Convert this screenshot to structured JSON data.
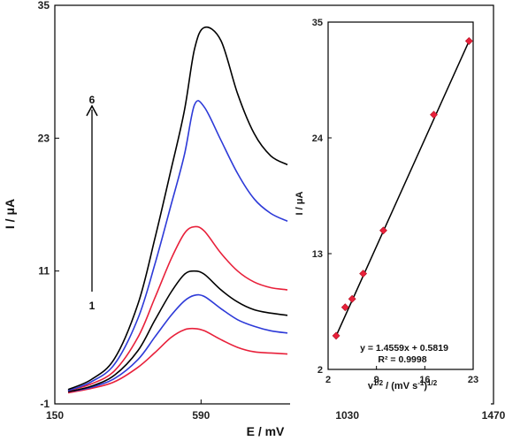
{
  "chart_data": [
    {
      "type": "line",
      "xlabel": "E / mV",
      "ylabel": "I / μA",
      "xlim": [
        150,
        1470
      ],
      "ylim": [
        -1,
        35
      ],
      "xticks": [
        150,
        590,
        1030,
        1470
      ],
      "yticks": [
        -1,
        11,
        23,
        35
      ],
      "grid": false,
      "annotations": {
        "arrow_start": "1",
        "arrow_end": "6"
      },
      "series": [
        {
          "color": "#e8203a",
          "x": [
            190,
            260,
            330,
            400,
            450,
            500,
            540,
            570,
            600,
            650,
            700,
            750,
            800,
            850
          ],
          "y": [
            0.0,
            0.4,
            1.0,
            2.3,
            3.6,
            5.0,
            5.7,
            5.8,
            5.6,
            4.8,
            4.1,
            3.7,
            3.6,
            3.5
          ]
        },
        {
          "color": "#2d3ad8",
          "x": [
            190,
            260,
            330,
            400,
            450,
            500,
            540,
            570,
            600,
            650,
            700,
            750,
            800,
            850
          ],
          "y": [
            0.1,
            0.5,
            1.3,
            3.0,
            5.0,
            7.0,
            8.3,
            8.8,
            8.7,
            7.6,
            6.6,
            6.0,
            5.6,
            5.4
          ]
        },
        {
          "color": "#000000",
          "x": [
            190,
            260,
            330,
            400,
            450,
            500,
            540,
            570,
            600,
            650,
            700,
            750,
            800,
            850
          ],
          "y": [
            0.1,
            0.6,
            1.6,
            3.8,
            6.5,
            9.1,
            10.7,
            11.0,
            10.7,
            9.3,
            8.2,
            7.5,
            7.2,
            7.0
          ]
        },
        {
          "color": "#e8203a",
          "x": [
            190,
            260,
            330,
            400,
            450,
            500,
            540,
            570,
            600,
            650,
            700,
            750,
            800,
            850
          ],
          "y": [
            0.2,
            0.8,
            2.0,
            5.0,
            8.5,
            12.1,
            14.4,
            15.0,
            14.6,
            12.6,
            11.0,
            10.0,
            9.5,
            9.3
          ]
        },
        {
          "color": "#2d3ad8",
          "x": [
            190,
            260,
            330,
            400,
            450,
            500,
            540,
            570,
            600,
            650,
            700,
            750,
            800,
            850
          ],
          "y": [
            0.2,
            1.0,
            2.6,
            6.7,
            11.5,
            17.0,
            21.5,
            26.0,
            25.8,
            22.8,
            19.8,
            17.5,
            16.2,
            15.5
          ]
        },
        {
          "color": "#000000",
          "x": [
            190,
            260,
            330,
            400,
            450,
            500,
            540,
            570,
            600,
            650,
            700,
            750,
            800,
            850
          ],
          "y": [
            0.3,
            1.2,
            3.1,
            8.0,
            13.8,
            20.2,
            25.5,
            31.0,
            33.0,
            31.8,
            27.0,
            23.4,
            21.4,
            20.6
          ]
        }
      ]
    },
    {
      "type": "scatter",
      "xlabel": "v1/2 / (mV s-1)1/2",
      "ylabel": "I / μA",
      "xlim": [
        2,
        23
      ],
      "ylim": [
        2,
        35
      ],
      "xticks": [
        2,
        9,
        16,
        23
      ],
      "yticks": [
        2,
        13,
        24,
        35
      ],
      "equation": "y = 1.4559x + 0.5819",
      "r2": "R² = 0.9998",
      "points": [
        {
          "x": 3.16,
          "y": 5.2
        },
        {
          "x": 4.47,
          "y": 7.9
        },
        {
          "x": 5.48,
          "y": 8.7
        },
        {
          "x": 7.07,
          "y": 11.1
        },
        {
          "x": 10.0,
          "y": 15.2
        },
        {
          "x": 17.3,
          "y": 26.2
        },
        {
          "x": 22.4,
          "y": 33.2
        }
      ],
      "fit": {
        "slope": 1.4559,
        "intercept": 0.5819
      },
      "marker_color": "#e8203a"
    }
  ]
}
